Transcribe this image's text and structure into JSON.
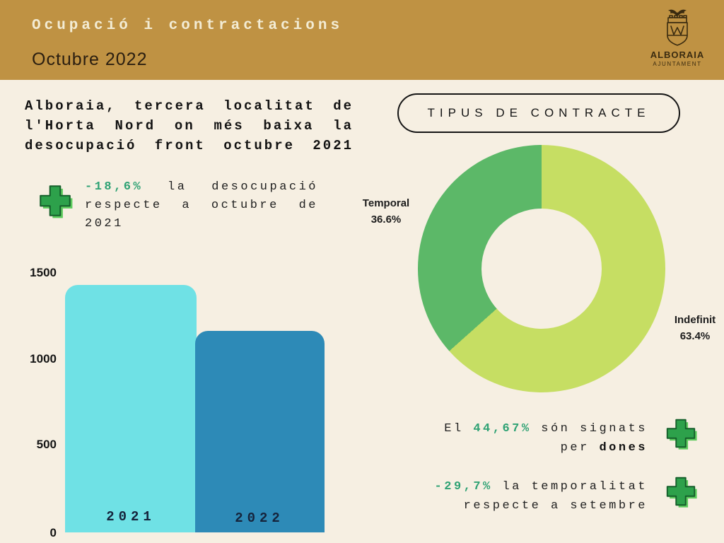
{
  "header": {
    "title": "Ocupació i contractacions",
    "subtitle": "Octubre 2022",
    "logo": {
      "name": "ALBORAIA",
      "sub": "AJUNTAMENT"
    }
  },
  "left": {
    "headline_lines": [
      "Alboraia, tercera localitat de",
      "l'Horta Nord on més baixa la",
      "desocupació front octubre 2021"
    ],
    "stat": {
      "value": "-18,6%",
      "line1_rest": "la desocupació",
      "line2": "respecte a octubre de",
      "line3": "2021"
    }
  },
  "right": {
    "pill_label": "TIPUS DE CONTRACTE",
    "stat_dones": {
      "line1_prefix": "El",
      "value": "44,67%",
      "line1_suffix": "són signats",
      "line2_prefix": "per",
      "line2_bold": "dones"
    },
    "stat_temporalitat": {
      "value": "-29,7%",
      "line1_rest": "la temporalitat",
      "line2": "respecte a setembre"
    }
  },
  "colors": {
    "header_bg": "#bf9243",
    "background": "#f6efe2",
    "accent_green": "#2fa274",
    "plus_fill": "#2da14b",
    "plus_highlight": "#5ecb5e",
    "plus_outline": "#155f2b"
  },
  "chart_data": [
    {
      "type": "bar",
      "title": "",
      "categories": [
        "2021",
        "2022"
      ],
      "values": [
        1427,
        1160
      ],
      "xlabel": "",
      "ylabel": "",
      "ylim": [
        0,
        1500
      ],
      "yticks": [
        1500,
        1000,
        500,
        0
      ],
      "grid": false,
      "colors": [
        "#6fe1e5",
        "#2d8ab7"
      ]
    },
    {
      "type": "pie",
      "donut": true,
      "title": "TIPUS DE CONTRACTE",
      "labels": [
        "Indefinit",
        "Temporal"
      ],
      "values": [
        63.4,
        36.6
      ],
      "display": [
        {
          "name": "Indefinit",
          "pct": "63.4%"
        },
        {
          "name": "Temporal",
          "pct": "36.6%"
        }
      ],
      "colors": [
        "#c6de63",
        "#5cb868"
      ],
      "legend_position": "outside-callouts"
    }
  ]
}
